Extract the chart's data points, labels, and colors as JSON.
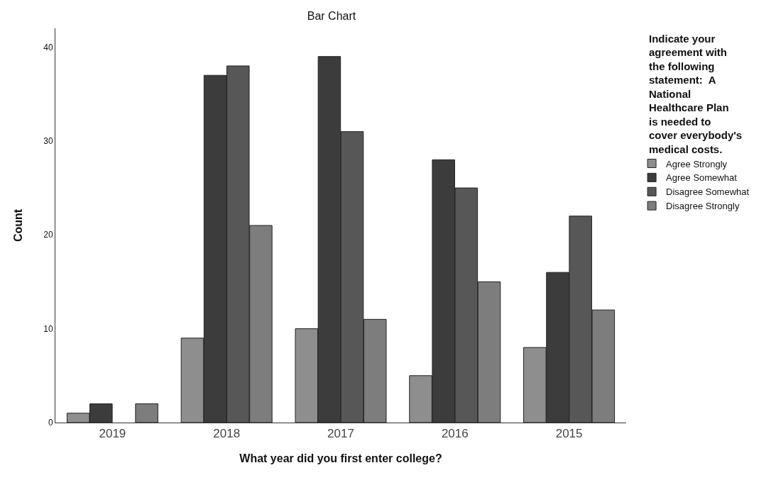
{
  "chart_data": {
    "type": "bar",
    "title": "Bar Chart",
    "xlabel": "What year did you first enter college?",
    "ylabel": "Count",
    "legend_title": "Indicate your agreement with the following statement:  A National Healthcare Plan is needed to cover everybody's medical costs.",
    "categories": [
      "2019",
      "2018",
      "2017",
      "2016",
      "2015"
    ],
    "series": [
      {
        "name": "Agree Strongly",
        "color": "#8e8e8e",
        "values": [
          1,
          9,
          10,
          5,
          8
        ]
      },
      {
        "name": "Agree Somewhat",
        "color": "#3c3c3c",
        "values": [
          2,
          37,
          39,
          28,
          16
        ]
      },
      {
        "name": "Disagree Somewhat",
        "color": "#575757",
        "values": [
          null,
          38,
          31,
          25,
          22
        ]
      },
      {
        "name": "Disagree Strongly",
        "color": "#7d7d7d",
        "values": [
          2,
          21,
          11,
          15,
          12
        ]
      }
    ],
    "ylim": [
      0,
      42
    ],
    "yticks": [
      0,
      10,
      20,
      30,
      40
    ],
    "grid": false,
    "legend": "right"
  }
}
